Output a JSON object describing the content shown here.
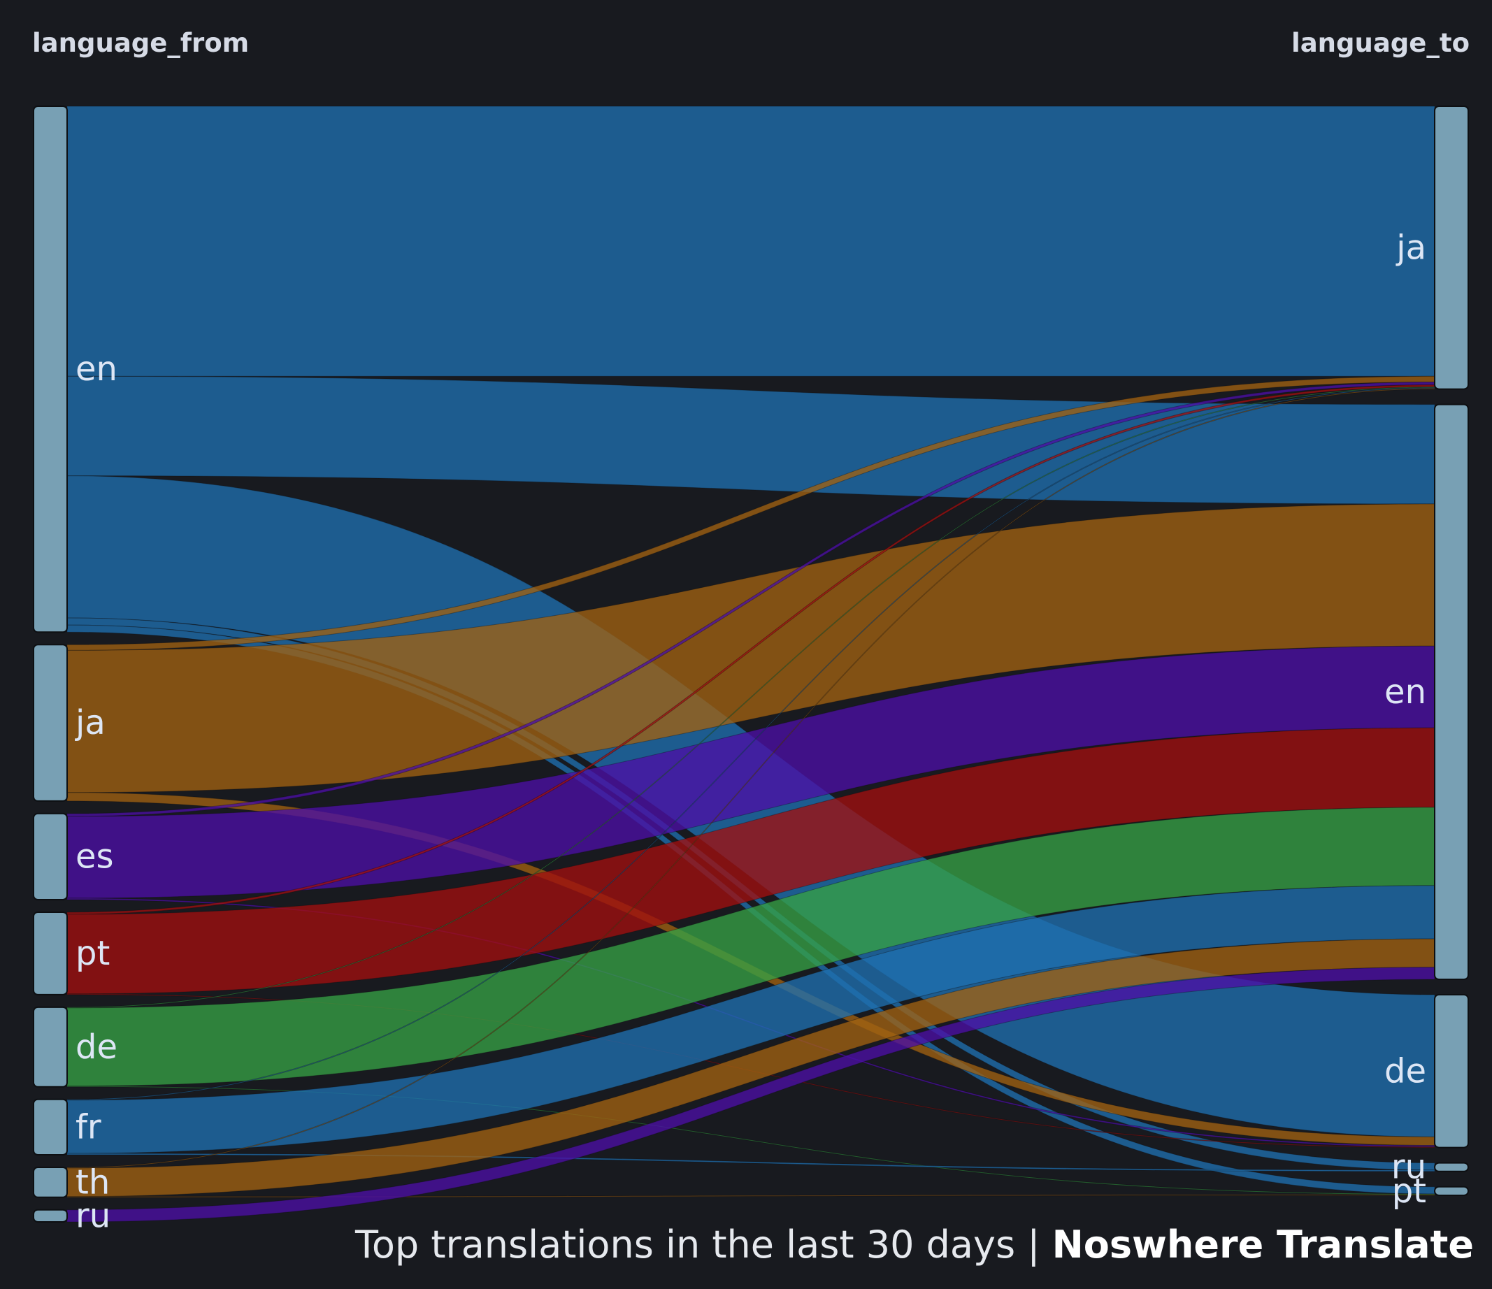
{
  "dimensions": {
    "from_label": "language_from",
    "to_label": "language_to"
  },
  "caption": {
    "lead": "Top translations in the last 30 days | ",
    "brand": "Noswhere Translate"
  },
  "chart_data": {
    "type": "sankey",
    "title": "",
    "left_nodes": [
      {
        "name": "en",
        "color": "#1f6fb0"
      },
      {
        "name": "ja",
        "color": "#a06212"
      },
      {
        "name": "es",
        "color": "#4b0fa5"
      },
      {
        "name": "pt",
        "color": "#a01010"
      },
      {
        "name": "de",
        "color": "#36a045"
      },
      {
        "name": "fr",
        "color": "#1f6fb0"
      },
      {
        "name": "th",
        "color": "#a06212"
      },
      {
        "name": "ru",
        "color": "#4b0fa5"
      }
    ],
    "right_nodes": [
      "ja",
      "en",
      "de",
      "ru",
      "pt"
    ],
    "node_fill": "#78a0b4",
    "links": [
      {
        "source": "en",
        "target": "ja",
        "value": 380
      },
      {
        "source": "en",
        "target": "en",
        "value": 140
      },
      {
        "source": "en",
        "target": "de",
        "value": 200
      },
      {
        "source": "en",
        "target": "ru",
        "value": 10
      },
      {
        "source": "en",
        "target": "pt",
        "value": 10
      },
      {
        "source": "ja",
        "target": "ja",
        "value": 8
      },
      {
        "source": "ja",
        "target": "en",
        "value": 200
      },
      {
        "source": "ja",
        "target": "de",
        "value": 12
      },
      {
        "source": "es",
        "target": "ja",
        "value": 4
      },
      {
        "source": "es",
        "target": "en",
        "value": 115
      },
      {
        "source": "es",
        "target": "de",
        "value": 2
      },
      {
        "source": "pt",
        "target": "ja",
        "value": 3
      },
      {
        "source": "pt",
        "target": "en",
        "value": 112
      },
      {
        "source": "pt",
        "target": "de",
        "value": 1
      },
      {
        "source": "de",
        "target": "ja",
        "value": 1
      },
      {
        "source": "de",
        "target": "en",
        "value": 110
      },
      {
        "source": "de",
        "target": "pt",
        "value": 1
      },
      {
        "source": "fr",
        "target": "ja",
        "value": 1
      },
      {
        "source": "fr",
        "target": "en",
        "value": 75
      },
      {
        "source": "fr",
        "target": "ru",
        "value": 2
      },
      {
        "source": "th",
        "target": "ja",
        "value": 1
      },
      {
        "source": "th",
        "target": "en",
        "value": 40
      },
      {
        "source": "th",
        "target": "pt",
        "value": 1
      },
      {
        "source": "ru",
        "target": "en",
        "value": 17
      }
    ]
  }
}
